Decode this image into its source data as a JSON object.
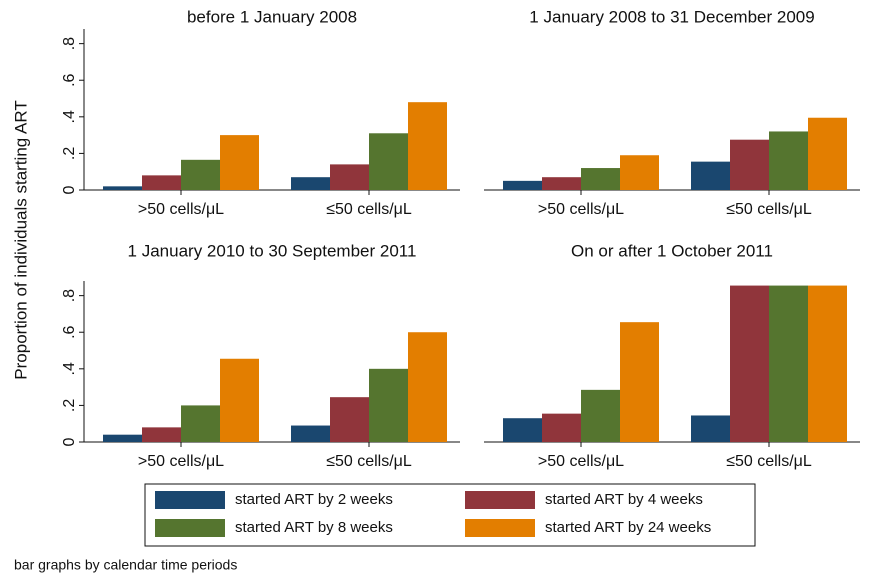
{
  "y_label": "Proportion of individuals starting ART",
  "note": "bar graphs by calendar time periods",
  "chart_data": [
    {
      "type": "bar",
      "title": "before 1 January 2008",
      "categories": [
        ">50 cells/μL",
        "≤50 cells/μL"
      ],
      "series": [
        {
          "name": "started ART by 2 weeks",
          "color": "#1a476f",
          "values": [
            0.02,
            0.07
          ]
        },
        {
          "name": "started ART by 4 weeks",
          "color": "#90353b",
          "values": [
            0.08,
            0.14
          ]
        },
        {
          "name": "started ART by 8 weeks",
          "color": "#55752f",
          "values": [
            0.165,
            0.31
          ]
        },
        {
          "name": "started ART by 24 weeks",
          "color": "#e37e00",
          "values": [
            0.3,
            0.48
          ]
        }
      ],
      "ylim": [
        0,
        0.88
      ],
      "yticks": [
        0,
        {
          "value": 0.2,
          "label": ".2"
        },
        {
          "value": 0.4,
          "label": ".4"
        },
        {
          "value": 0.6,
          "label": ".6"
        },
        {
          "value": 0.8,
          "label": ".8"
        }
      ]
    },
    {
      "type": "bar",
      "title": "1 January 2008 to 31 December 2009",
      "categories": [
        ">50 cells/μL",
        "≤50 cells/μL"
      ],
      "series": [
        {
          "name": "started ART by 2 weeks",
          "color": "#1a476f",
          "values": [
            0.05,
            0.155
          ]
        },
        {
          "name": "started ART by 4 weeks",
          "color": "#90353b",
          "values": [
            0.07,
            0.275
          ]
        },
        {
          "name": "started ART by 8 weeks",
          "color": "#55752f",
          "values": [
            0.12,
            0.32
          ]
        },
        {
          "name": "started ART by 24 weeks",
          "color": "#e37e00",
          "values": [
            0.19,
            0.395
          ]
        }
      ],
      "ylim": [
        0,
        0.88
      ]
    },
    {
      "type": "bar",
      "title": "1 January 2010 to 30 September 2011",
      "categories": [
        ">50 cells/μL",
        "≤50 cells/μL"
      ],
      "series": [
        {
          "name": "started ART by 2 weeks",
          "color": "#1a476f",
          "values": [
            0.04,
            0.09
          ]
        },
        {
          "name": "started ART by 4 weeks",
          "color": "#90353b",
          "values": [
            0.08,
            0.245
          ]
        },
        {
          "name": "started ART by 8 weeks",
          "color": "#55752f",
          "values": [
            0.2,
            0.4
          ]
        },
        {
          "name": "started ART by 24 weeks",
          "color": "#e37e00",
          "values": [
            0.455,
            0.6
          ]
        }
      ],
      "ylim": [
        0,
        0.88
      ],
      "yticks": [
        0,
        {
          "value": 0.2,
          "label": ".2"
        },
        {
          "value": 0.4,
          "label": ".4"
        },
        {
          "value": 0.6,
          "label": ".6"
        },
        {
          "value": 0.8,
          "label": ".8"
        }
      ]
    },
    {
      "type": "bar",
      "title": "On or after 1 October 2011",
      "categories": [
        ">50 cells/μL",
        "≤50 cells/μL"
      ],
      "series": [
        {
          "name": "started ART by 2 weeks",
          "color": "#1a476f",
          "values": [
            0.13,
            0.145
          ]
        },
        {
          "name": "started ART by 4 weeks",
          "color": "#90353b",
          "values": [
            0.155,
            0.855
          ]
        },
        {
          "name": "started ART by 8 weeks",
          "color": "#55752f",
          "values": [
            0.285,
            0.855
          ]
        },
        {
          "name": "started ART by 24 weeks",
          "color": "#e37e00",
          "values": [
            0.655,
            0.855
          ]
        }
      ],
      "ylim": [
        0,
        0.88
      ]
    }
  ]
}
